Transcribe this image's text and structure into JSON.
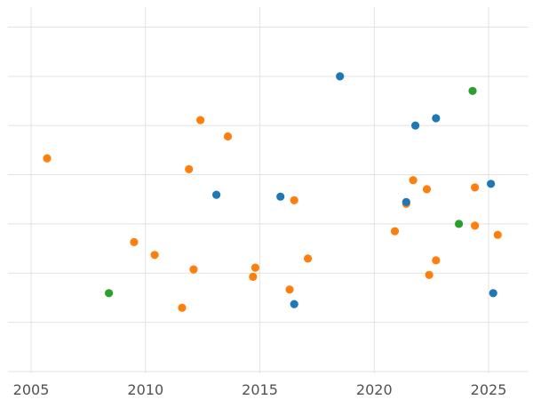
{
  "chart_data": {
    "type": "scatter",
    "title": "",
    "xlabel": "",
    "ylabel": "",
    "x_ticks": [
      2005,
      2010,
      2015,
      2020,
      2025
    ],
    "xlim": [
      2003.64,
      2026.94
    ],
    "ylim": [
      0,
      100
    ],
    "y_axis_labels_visible": false,
    "grid": true,
    "legend": "none",
    "y_gridlines": [
      0.5,
      14,
      27.5,
      41,
      54.5,
      68,
      81.5,
      95
    ],
    "series": [
      {
        "name": "orange",
        "color": "#ff7f0e",
        "points": [
          [
            2005.7,
            59
          ],
          [
            2009.5,
            36
          ],
          [
            2010.4,
            32.5
          ],
          [
            2011.6,
            18
          ],
          [
            2011.9,
            56
          ],
          [
            2012.1,
            28.5
          ],
          [
            2012.4,
            69.5
          ],
          [
            2013.6,
            65
          ],
          [
            2014.7,
            26.5
          ],
          [
            2014.8,
            29
          ],
          [
            2016.3,
            23
          ],
          [
            2016.5,
            47.5
          ],
          [
            2017.1,
            31.5
          ],
          [
            2020.9,
            39
          ],
          [
            2021.4,
            46.5
          ],
          [
            2021.7,
            53
          ],
          [
            2022.3,
            50.5
          ],
          [
            2022.4,
            27
          ],
          [
            2022.7,
            31
          ],
          [
            2024.4,
            51
          ],
          [
            2024.4,
            40.5
          ],
          [
            2025.4,
            38
          ]
        ]
      },
      {
        "name": "blue",
        "color": "#1f77b4",
        "points": [
          [
            2013.1,
            49
          ],
          [
            2015.9,
            48.5
          ],
          [
            2016.5,
            19
          ],
          [
            2018.5,
            81.5
          ],
          [
            2021.4,
            47
          ],
          [
            2021.8,
            68
          ],
          [
            2022.7,
            70
          ],
          [
            2025.1,
            52
          ],
          [
            2025.2,
            22
          ]
        ]
      },
      {
        "name": "green",
        "color": "#2ca02c",
        "points": [
          [
            2008.4,
            22
          ],
          [
            2023.7,
            41
          ],
          [
            2024.3,
            77.5
          ]
        ]
      }
    ]
  },
  "colors": {
    "background": "#ffffff",
    "grid": "#e3e3e3",
    "tick_label": "#525252"
  }
}
